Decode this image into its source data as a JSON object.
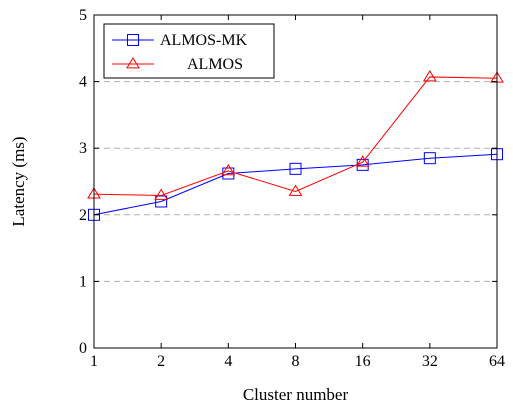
{
  "chart_data": {
    "type": "line",
    "xlabel": "Cluster number",
    "ylabel": "Latency (ms)",
    "categories": [
      "1",
      "2",
      "4",
      "8",
      "16",
      "32",
      "64"
    ],
    "ylim": [
      0,
      5
    ],
    "yticks": [
      0,
      1,
      2,
      3,
      4,
      5
    ],
    "grid": "horizontal dashed",
    "legend_position": "top-left",
    "series": [
      {
        "name": "ALMOS-MK",
        "marker": "square",
        "color": "#0000ff",
        "values": [
          2.0,
          2.2,
          2.62,
          2.69,
          2.75,
          2.85,
          2.91
        ]
      },
      {
        "name": "ALMOS",
        "marker": "triangle",
        "color": "#ff0000",
        "values": [
          2.31,
          2.29,
          2.66,
          2.35,
          2.79,
          4.07,
          4.05
        ]
      }
    ]
  }
}
